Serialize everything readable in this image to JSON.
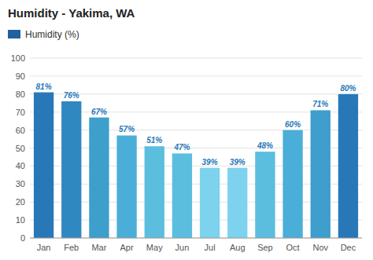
{
  "chart_data": {
    "type": "bar",
    "title": "Humidity - Yakima, WA",
    "categories": [
      "Jan",
      "Feb",
      "Mar",
      "Apr",
      "May",
      "Jun",
      "Jul",
      "Aug",
      "Sep",
      "Oct",
      "Nov",
      "Dec"
    ],
    "series": [
      {
        "name": "Humidity (%)",
        "color": "#2060A0",
        "colors": [
          "#2878B8",
          "#3088C0",
          "#3E9ECC",
          "#4AAED8",
          "#5BBEDE",
          "#5BBEDE",
          "#7DD2EE",
          "#7DD2EE",
          "#5BBEDE",
          "#4AAED8",
          "#3E9ECC",
          "#2878B8"
        ],
        "values": [
          81,
          76,
          67,
          57,
          51,
          47,
          39,
          39,
          48,
          60,
          71,
          80
        ],
        "value_labels": [
          "81%",
          "76%",
          "67%",
          "57%",
          "51%",
          "47%",
          "39%",
          "39%",
          "48%",
          "60%",
          "71%",
          "80%"
        ]
      }
    ],
    "ylim": [
      0,
      100
    ],
    "yticks": [
      0,
      10,
      20,
      30,
      40,
      50,
      60,
      70,
      80,
      90,
      100
    ],
    "grid": true,
    "legend": "upper left",
    "data_labels": true
  }
}
